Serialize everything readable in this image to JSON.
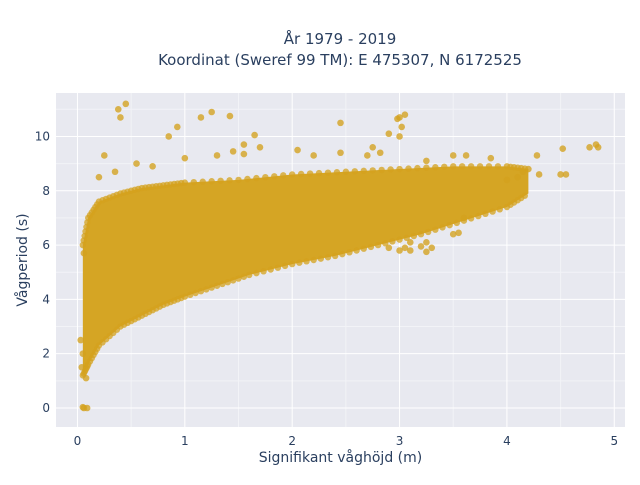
{
  "chart_data": {
    "type": "scatter",
    "title": "År 1979 - 2019",
    "subtitle": "Koordinat (Sweref 99 TM): E 475307, N 6172525",
    "xlabel": "Signifikant våghöjd (m)",
    "ylabel": "Vågperiod (s)",
    "xlim": [
      -0.2,
      5.1
    ],
    "ylim": [
      -0.7,
      11.6
    ],
    "x_ticks": [
      0,
      1,
      2,
      3,
      4,
      5
    ],
    "y_ticks": [
      0,
      2,
      4,
      6,
      8,
      10
    ],
    "x_tick_labels": [
      "0",
      "1",
      "2",
      "3",
      "4",
      "5"
    ],
    "y_tick_labels": [
      "0",
      "2",
      "4",
      "6",
      "8",
      "10"
    ],
    "grid": true,
    "legend": "none",
    "marker_color": "#d4a21d",
    "plot_bg": "#e8e9f0",
    "dense_region": {
      "lower_edge": [
        [
          0.05,
          1.2
        ],
        [
          0.1,
          1.6
        ],
        [
          0.2,
          2.3
        ],
        [
          0.4,
          3.0
        ],
        [
          0.6,
          3.4
        ],
        [
          0.8,
          3.8
        ],
        [
          1.0,
          4.1
        ],
        [
          1.3,
          4.5
        ],
        [
          1.6,
          4.9
        ],
        [
          2.0,
          5.3
        ],
        [
          2.4,
          5.6
        ],
        [
          2.8,
          6.0
        ],
        [
          3.2,
          6.4
        ],
        [
          3.6,
          6.9
        ],
        [
          4.0,
          7.4
        ],
        [
          4.2,
          7.9
        ]
      ],
      "upper_edge": [
        [
          0.05,
          6.0
        ],
        [
          0.1,
          7.0
        ],
        [
          0.2,
          7.6
        ],
        [
          0.4,
          7.9
        ],
        [
          0.6,
          8.1
        ],
        [
          0.8,
          8.2
        ],
        [
          1.0,
          8.3
        ],
        [
          1.5,
          8.4
        ],
        [
          2.0,
          8.6
        ],
        [
          2.5,
          8.7
        ],
        [
          3.0,
          8.8
        ],
        [
          3.5,
          8.9
        ],
        [
          4.0,
          8.9
        ],
        [
          4.2,
          8.8
        ]
      ]
    },
    "points": [
      [
        0.45,
        11.2
      ],
      [
        0.38,
        11.0
      ],
      [
        0.4,
        10.7
      ],
      [
        0.85,
        10.0
      ],
      [
        0.93,
        10.35
      ],
      [
        1.25,
        10.9
      ],
      [
        1.15,
        10.7
      ],
      [
        1.42,
        10.75
      ],
      [
        1.65,
        10.05
      ],
      [
        2.45,
        10.5
      ],
      [
        2.05,
        9.5
      ],
      [
        3.0,
        10.7
      ],
      [
        2.98,
        10.65
      ],
      [
        3.02,
        10.35
      ],
      [
        2.9,
        10.1
      ],
      [
        3.05,
        10.8
      ],
      [
        0.25,
        9.3
      ],
      [
        0.35,
        8.7
      ],
      [
        0.2,
        8.5
      ],
      [
        1.0,
        9.2
      ],
      [
        1.3,
        9.3
      ],
      [
        1.45,
        9.45
      ],
      [
        1.7,
        9.6
      ],
      [
        2.2,
        9.3
      ],
      [
        2.45,
        9.4
      ],
      [
        2.75,
        9.6
      ],
      [
        2.82,
        9.4
      ],
      [
        3.25,
        9.1
      ],
      [
        3.5,
        9.3
      ],
      [
        3.62,
        9.3
      ],
      [
        3.85,
        9.2
      ],
      [
        4.28,
        9.3
      ],
      [
        4.52,
        9.55
      ],
      [
        4.5,
        8.6
      ],
      [
        4.55,
        8.6
      ],
      [
        4.77,
        9.6
      ],
      [
        4.85,
        9.6
      ],
      [
        4.83,
        9.7
      ],
      [
        0.06,
        0.0
      ],
      [
        0.09,
        0.0
      ],
      [
        0.05,
        0.03
      ],
      [
        0.04,
        1.5
      ],
      [
        0.05,
        2.0
      ],
      [
        0.06,
        5.7
      ],
      [
        0.03,
        2.5
      ],
      [
        0.08,
        1.1
      ],
      [
        3.5,
        6.4
      ],
      [
        3.55,
        6.45
      ],
      [
        3.1,
        6.1
      ],
      [
        3.6,
        7.0
      ],
      [
        3.05,
        5.9
      ],
      [
        3.25,
        6.1
      ],
      [
        3.2,
        5.95
      ],
      [
        3.0,
        5.8
      ],
      [
        2.9,
        5.9
      ],
      [
        3.3,
        5.9
      ],
      [
        3.1,
        5.8
      ],
      [
        3.25,
        5.75
      ],
      [
        3.0,
        10.0
      ],
      [
        2.7,
        9.3
      ],
      [
        1.55,
        9.7
      ],
      [
        1.55,
        9.35
      ],
      [
        0.55,
        9.0
      ],
      [
        0.7,
        8.9
      ],
      [
        4.0,
        8.4
      ],
      [
        4.1,
        8.5
      ],
      [
        4.15,
        8.7
      ],
      [
        4.3,
        8.6
      ],
      [
        4.2,
        8.8
      ]
    ]
  }
}
